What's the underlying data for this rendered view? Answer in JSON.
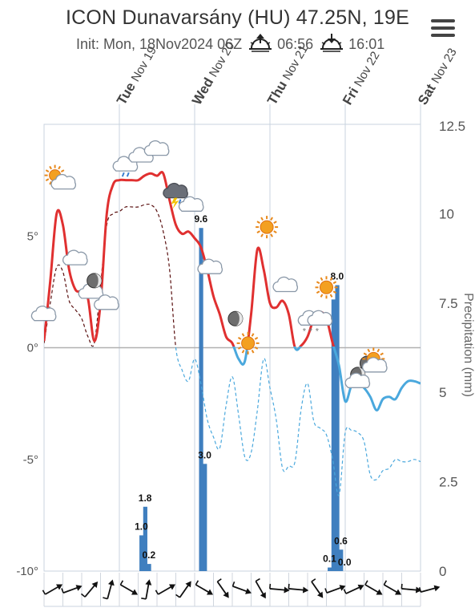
{
  "header": {
    "title": "ICON Dunavarsány (HU) 47.25N, 19E",
    "init_label": "Init: Mon, 18Nov2024 06Z",
    "sunrise": "06:56",
    "sunset": "16:01",
    "icons": {
      "sunrise": "sunrise-icon",
      "sunset": "sunset-icon",
      "menu": "hamburger-menu-icon"
    }
  },
  "colors": {
    "temperature": "#e03030",
    "temperature_below_zero": "#4aa8dd",
    "dewpoint_above_zero": "#5a1010",
    "dewpoint_below_zero": "#4aa8dd",
    "precipitation": "#3f7fbf",
    "grid": "#c9d3df",
    "zero_line": "#b0b0b0",
    "axis_text": "#555555"
  },
  "chart_data": {
    "type": "line",
    "x_unit": "hours since Mon 18 Nov 2024 00Z",
    "xlim": [
      0,
      120
    ],
    "day_ticks": [
      {
        "x": 24,
        "day": "Tue",
        "date": "Nov 19"
      },
      {
        "x": 48,
        "day": "Wed",
        "date": "Nov 20"
      },
      {
        "x": 72,
        "day": "Thu",
        "date": "Nov 21"
      },
      {
        "x": 96,
        "day": "Fri",
        "date": "Nov 22"
      },
      {
        "x": 120,
        "day": "Sat",
        "date": "Nov 23"
      }
    ],
    "y_left": {
      "label": "",
      "unit": "°",
      "lim": [
        -10,
        10
      ],
      "ticks": [
        "5°",
        "0°",
        "-5°",
        "-10°"
      ],
      "tick_values": [
        5,
        0,
        -5,
        -10
      ]
    },
    "y_right": {
      "label": "Precipitation (mm)",
      "lim": [
        0,
        12.5
      ],
      "ticks": [
        "12.5",
        "10",
        "7.5",
        "5",
        "2.5",
        "0"
      ],
      "tick_values": [
        12.5,
        10,
        7.5,
        5,
        2.5,
        0
      ]
    },
    "series": [
      {
        "name": "Temperature",
        "unit": "°C",
        "x": [
          0,
          2,
          4,
          6,
          8,
          10,
          12,
          14,
          16,
          18,
          20,
          22,
          24,
          26,
          28,
          30,
          32,
          34,
          36,
          38,
          40,
          42,
          44,
          46,
          48,
          50,
          52,
          54,
          56,
          58,
          60,
          62,
          64,
          66,
          68,
          70,
          72,
          74,
          76,
          78,
          80,
          82,
          84,
          86,
          88,
          90,
          92,
          94,
          96,
          98,
          100,
          102,
          104,
          106,
          108,
          110,
          112,
          114,
          116,
          118,
          120
        ],
        "values": [
          0.3,
          3.0,
          6.0,
          5.5,
          3.5,
          2.6,
          2.5,
          2.2,
          0.3,
          2.0,
          6.0,
          7.3,
          7.5,
          7.5,
          7.5,
          7.5,
          7.7,
          7.8,
          7.7,
          7.8,
          6.6,
          5.5,
          5.1,
          5.2,
          4.9,
          4.5,
          3.5,
          2.3,
          1.5,
          0.5,
          0.2,
          -0.5,
          -0.6,
          1.5,
          4.4,
          3.5,
          2.0,
          1.8,
          2.1,
          1.5,
          0.0,
          0.1,
          0.5,
          1.3,
          1.6,
          1.3,
          0.2,
          -0.8,
          -2.4,
          -1.7,
          -1.6,
          -1.8,
          -2.2,
          -2.8,
          -2.3,
          -2.2,
          -2.3,
          -1.8,
          -1.5,
          -1.5,
          -1.6
        ]
      },
      {
        "name": "Dew point",
        "unit": "°C",
        "x": [
          0,
          2,
          4,
          6,
          8,
          10,
          12,
          14,
          16,
          18,
          20,
          22,
          24,
          26,
          28,
          30,
          32,
          34,
          36,
          38,
          40,
          42,
          44,
          46,
          48,
          50,
          52,
          54,
          56,
          58,
          60,
          62,
          64,
          66,
          68,
          70,
          72,
          74,
          76,
          78,
          80,
          82,
          84,
          86,
          88,
          90,
          92,
          94,
          96,
          98,
          100,
          102,
          104,
          106,
          108,
          110,
          112,
          114,
          116,
          118,
          120
        ],
        "values": [
          0.2,
          2.0,
          3.6,
          3.4,
          2.1,
          1.7,
          1.3,
          0.5,
          0.2,
          2.8,
          5.5,
          6.0,
          6.1,
          6.3,
          6.3,
          6.3,
          6.4,
          6.4,
          6.1,
          5.2,
          3.5,
          0.0,
          -1.0,
          -1.5,
          -0.5,
          -1.6,
          -3.2,
          -4.0,
          -4.5,
          -2.6,
          -1.3,
          -3.0,
          -4.9,
          -4.7,
          -2.8,
          -0.5,
          -1.8,
          -3.2,
          -5.4,
          -5.3,
          -5.1,
          -2.7,
          -1.6,
          -3.3,
          -3.6,
          -3.9,
          -5.0,
          -6.6,
          -3.8,
          -3.7,
          -3.8,
          -4.2,
          -5.7,
          -5.9,
          -5.5,
          -5.4,
          -5.0,
          -5.1,
          -5.1,
          -5.0,
          -5.1
        ]
      }
    ],
    "precipitation": {
      "name": "Precipitation",
      "unit": "mm",
      "bars": [
        {
          "x": 31,
          "value": 1.0
        },
        {
          "x": 32.2,
          "value": 1.8
        },
        {
          "x": 33.4,
          "value": 0.2
        },
        {
          "x": 50,
          "value": 9.6
        },
        {
          "x": 51.2,
          "value": 3.0
        },
        {
          "x": 91,
          "value": 0.1
        },
        {
          "x": 92.2,
          "value": 7.6
        },
        {
          "x": 93.4,
          "value": 8.0
        },
        {
          "x": 94.6,
          "value": 0.6
        },
        {
          "x": 95.8,
          "value": 0.0
        }
      ],
      "labels": [
        {
          "x": 31,
          "value": 1.0,
          "text": "1.0"
        },
        {
          "x": 32.2,
          "value": 1.8,
          "text": "1.8"
        },
        {
          "x": 33.4,
          "value": 0.2,
          "text": "0.2"
        },
        {
          "x": 50,
          "value": 9.6,
          "text": "9.6"
        },
        {
          "x": 51.2,
          "value": 3.0,
          "text": "3.0"
        },
        {
          "x": 91,
          "value": 0.1,
          "text": "0.1"
        },
        {
          "x": 93.4,
          "value": 8.0,
          "text": "8.0"
        },
        {
          "x": 94.6,
          "value": 0.6,
          "text": "0.6"
        },
        {
          "x": 95.8,
          "value": 0.0,
          "text": "0.0"
        }
      ]
    },
    "weather_icons": [
      {
        "x": 0,
        "temp": 1.5,
        "icon": "cloud-icon"
      },
      {
        "x": 5,
        "temp": 7.5,
        "icon": "partly-sunny-icon"
      },
      {
        "x": 10,
        "temp": 4.0,
        "icon": "cloud-icon"
      },
      {
        "x": 15,
        "temp": 2.5,
        "icon": "cloud-icon"
      },
      {
        "x": 16,
        "temp": 3.0,
        "icon": "moon-icon"
      },
      {
        "x": 20,
        "temp": 2.0,
        "icon": "cloud-icon"
      },
      {
        "x": 26,
        "temp": 8.2,
        "icon": "rain-cloud-icon"
      },
      {
        "x": 31,
        "temp": 8.6,
        "icon": "cloud-icon"
      },
      {
        "x": 36,
        "temp": 8.9,
        "icon": "cloud-icon"
      },
      {
        "x": 42,
        "temp": 7.0,
        "icon": "thunderstorm-icon"
      },
      {
        "x": 47,
        "temp": 6.4,
        "icon": "cloud-icon"
      },
      {
        "x": 53,
        "temp": 3.6,
        "icon": "cloud-icon"
      },
      {
        "x": 61,
        "temp": 1.3,
        "icon": "moon-icon"
      },
      {
        "x": 65,
        "temp": 0.2,
        "icon": "sun-icon"
      },
      {
        "x": 71,
        "temp": 5.4,
        "icon": "sun-icon"
      },
      {
        "x": 77,
        "temp": 2.8,
        "icon": "cloud-icon"
      },
      {
        "x": 85,
        "temp": 1.3,
        "icon": "snow-cloud-icon"
      },
      {
        "x": 88,
        "temp": 1.3,
        "icon": "cloud-icon"
      },
      {
        "x": 90,
        "temp": 2.7,
        "icon": "sun-icon"
      },
      {
        "x": 100,
        "temp": -1.2,
        "icon": "moon-icon"
      },
      {
        "x": 100,
        "temp": -1.5,
        "icon": "cloud-icon"
      },
      {
        "x": 103,
        "temp": -0.7,
        "icon": "moon-icon"
      },
      {
        "x": 105,
        "temp": -0.5,
        "icon": "sun-icon"
      },
      {
        "x": 105.5,
        "temp": -0.8,
        "icon": "cloud-icon"
      }
    ],
    "wind_directions_deg": [
      60,
      70,
      40,
      15,
      120,
      10,
      60,
      35,
      120,
      145,
      110,
      150,
      95,
      95,
      145,
      70,
      65,
      120,
      120,
      95,
      75
    ]
  }
}
